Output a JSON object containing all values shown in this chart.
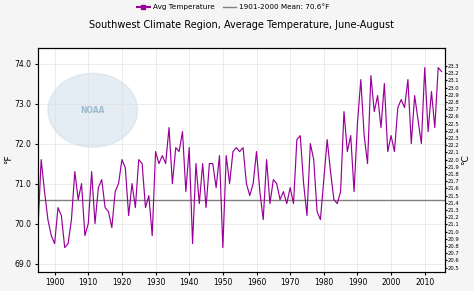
{
  "title": "Southwest Climate Region, Average Temperature, June-August",
  "ylabel_left": "°F",
  "ylabel_right": "°C",
  "mean_value": 70.6,
  "mean_label": "1901-2000 Mean: 70.6°F",
  "line_color": "#990099",
  "mean_color": "#808080",
  "background_color": "#f5f5f5",
  "plot_bg_color": "#ffffff",
  "xlim": [
    1895,
    2016
  ],
  "ylim_f": [
    68.8,
    74.4
  ],
  "yticks_f": [
    69.0,
    70.0,
    71.0,
    72.0,
    73.0,
    74.0
  ],
  "xticks": [
    1900,
    1910,
    1920,
    1930,
    1940,
    1950,
    1960,
    1970,
    1980,
    1990,
    2000,
    2010
  ],
  "c_ticks_min": 201,
  "c_ticks_max": 234,
  "years": [
    1895,
    1896,
    1897,
    1898,
    1899,
    1900,
    1901,
    1902,
    1903,
    1904,
    1905,
    1906,
    1907,
    1908,
    1909,
    1910,
    1911,
    1912,
    1913,
    1914,
    1915,
    1916,
    1917,
    1918,
    1919,
    1920,
    1921,
    1922,
    1923,
    1924,
    1925,
    1926,
    1927,
    1928,
    1929,
    1930,
    1931,
    1932,
    1933,
    1934,
    1935,
    1936,
    1937,
    1938,
    1939,
    1940,
    1941,
    1942,
    1943,
    1944,
    1945,
    1946,
    1947,
    1948,
    1949,
    1950,
    1951,
    1952,
    1953,
    1954,
    1955,
    1956,
    1957,
    1958,
    1959,
    1960,
    1961,
    1962,
    1963,
    1964,
    1965,
    1966,
    1967,
    1968,
    1969,
    1970,
    1971,
    1972,
    1973,
    1974,
    1975,
    1976,
    1977,
    1978,
    1979,
    1980,
    1981,
    1982,
    1983,
    1984,
    1985,
    1986,
    1987,
    1988,
    1989,
    1990,
    1991,
    1992,
    1993,
    1994,
    1995,
    1996,
    1997,
    1998,
    1999,
    2000,
    2001,
    2002,
    2003,
    2004,
    2005,
    2006,
    2007,
    2008,
    2009,
    2010,
    2011,
    2012,
    2013,
    2014,
    2015
  ],
  "temps_f": [
    69.8,
    71.6,
    70.8,
    70.1,
    69.7,
    69.5,
    70.4,
    70.2,
    69.4,
    69.5,
    70.1,
    71.3,
    70.6,
    71.0,
    69.7,
    70.0,
    71.3,
    70.0,
    70.9,
    71.1,
    70.4,
    70.3,
    69.9,
    70.8,
    71.0,
    71.6,
    71.4,
    70.2,
    71.0,
    70.4,
    71.6,
    71.5,
    70.4,
    70.7,
    69.7,
    71.8,
    71.5,
    71.7,
    71.5,
    72.4,
    71.0,
    71.9,
    71.8,
    72.3,
    70.8,
    71.9,
    69.5,
    71.5,
    70.5,
    71.5,
    70.4,
    71.5,
    71.5,
    70.9,
    71.7,
    69.4,
    71.7,
    71.0,
    71.8,
    71.9,
    71.8,
    71.9,
    71.0,
    70.7,
    71.0,
    71.8,
    70.8,
    70.1,
    71.6,
    70.5,
    71.1,
    71.0,
    70.6,
    70.8,
    70.5,
    70.9,
    70.5,
    72.1,
    72.2,
    71.0,
    70.2,
    72.0,
    71.6,
    70.3,
    70.1,
    71.1,
    72.1,
    71.3,
    70.6,
    70.5,
    70.8,
    72.8,
    71.8,
    72.2,
    70.8,
    72.5,
    73.6,
    72.2,
    71.5,
    73.7,
    72.8,
    73.2,
    72.4,
    73.5,
    71.8,
    72.2,
    71.8,
    72.9,
    73.1,
    72.9,
    73.6,
    72.0,
    73.2,
    72.6,
    72.0,
    73.9,
    72.3,
    73.3,
    72.4,
    73.9,
    73.8
  ],
  "legend_line_label": "Avg Temperature",
  "grid_color": "#dddddd",
  "noaa_circle_color": "#c5d8e8",
  "noaa_text_color": "#8aafc4"
}
